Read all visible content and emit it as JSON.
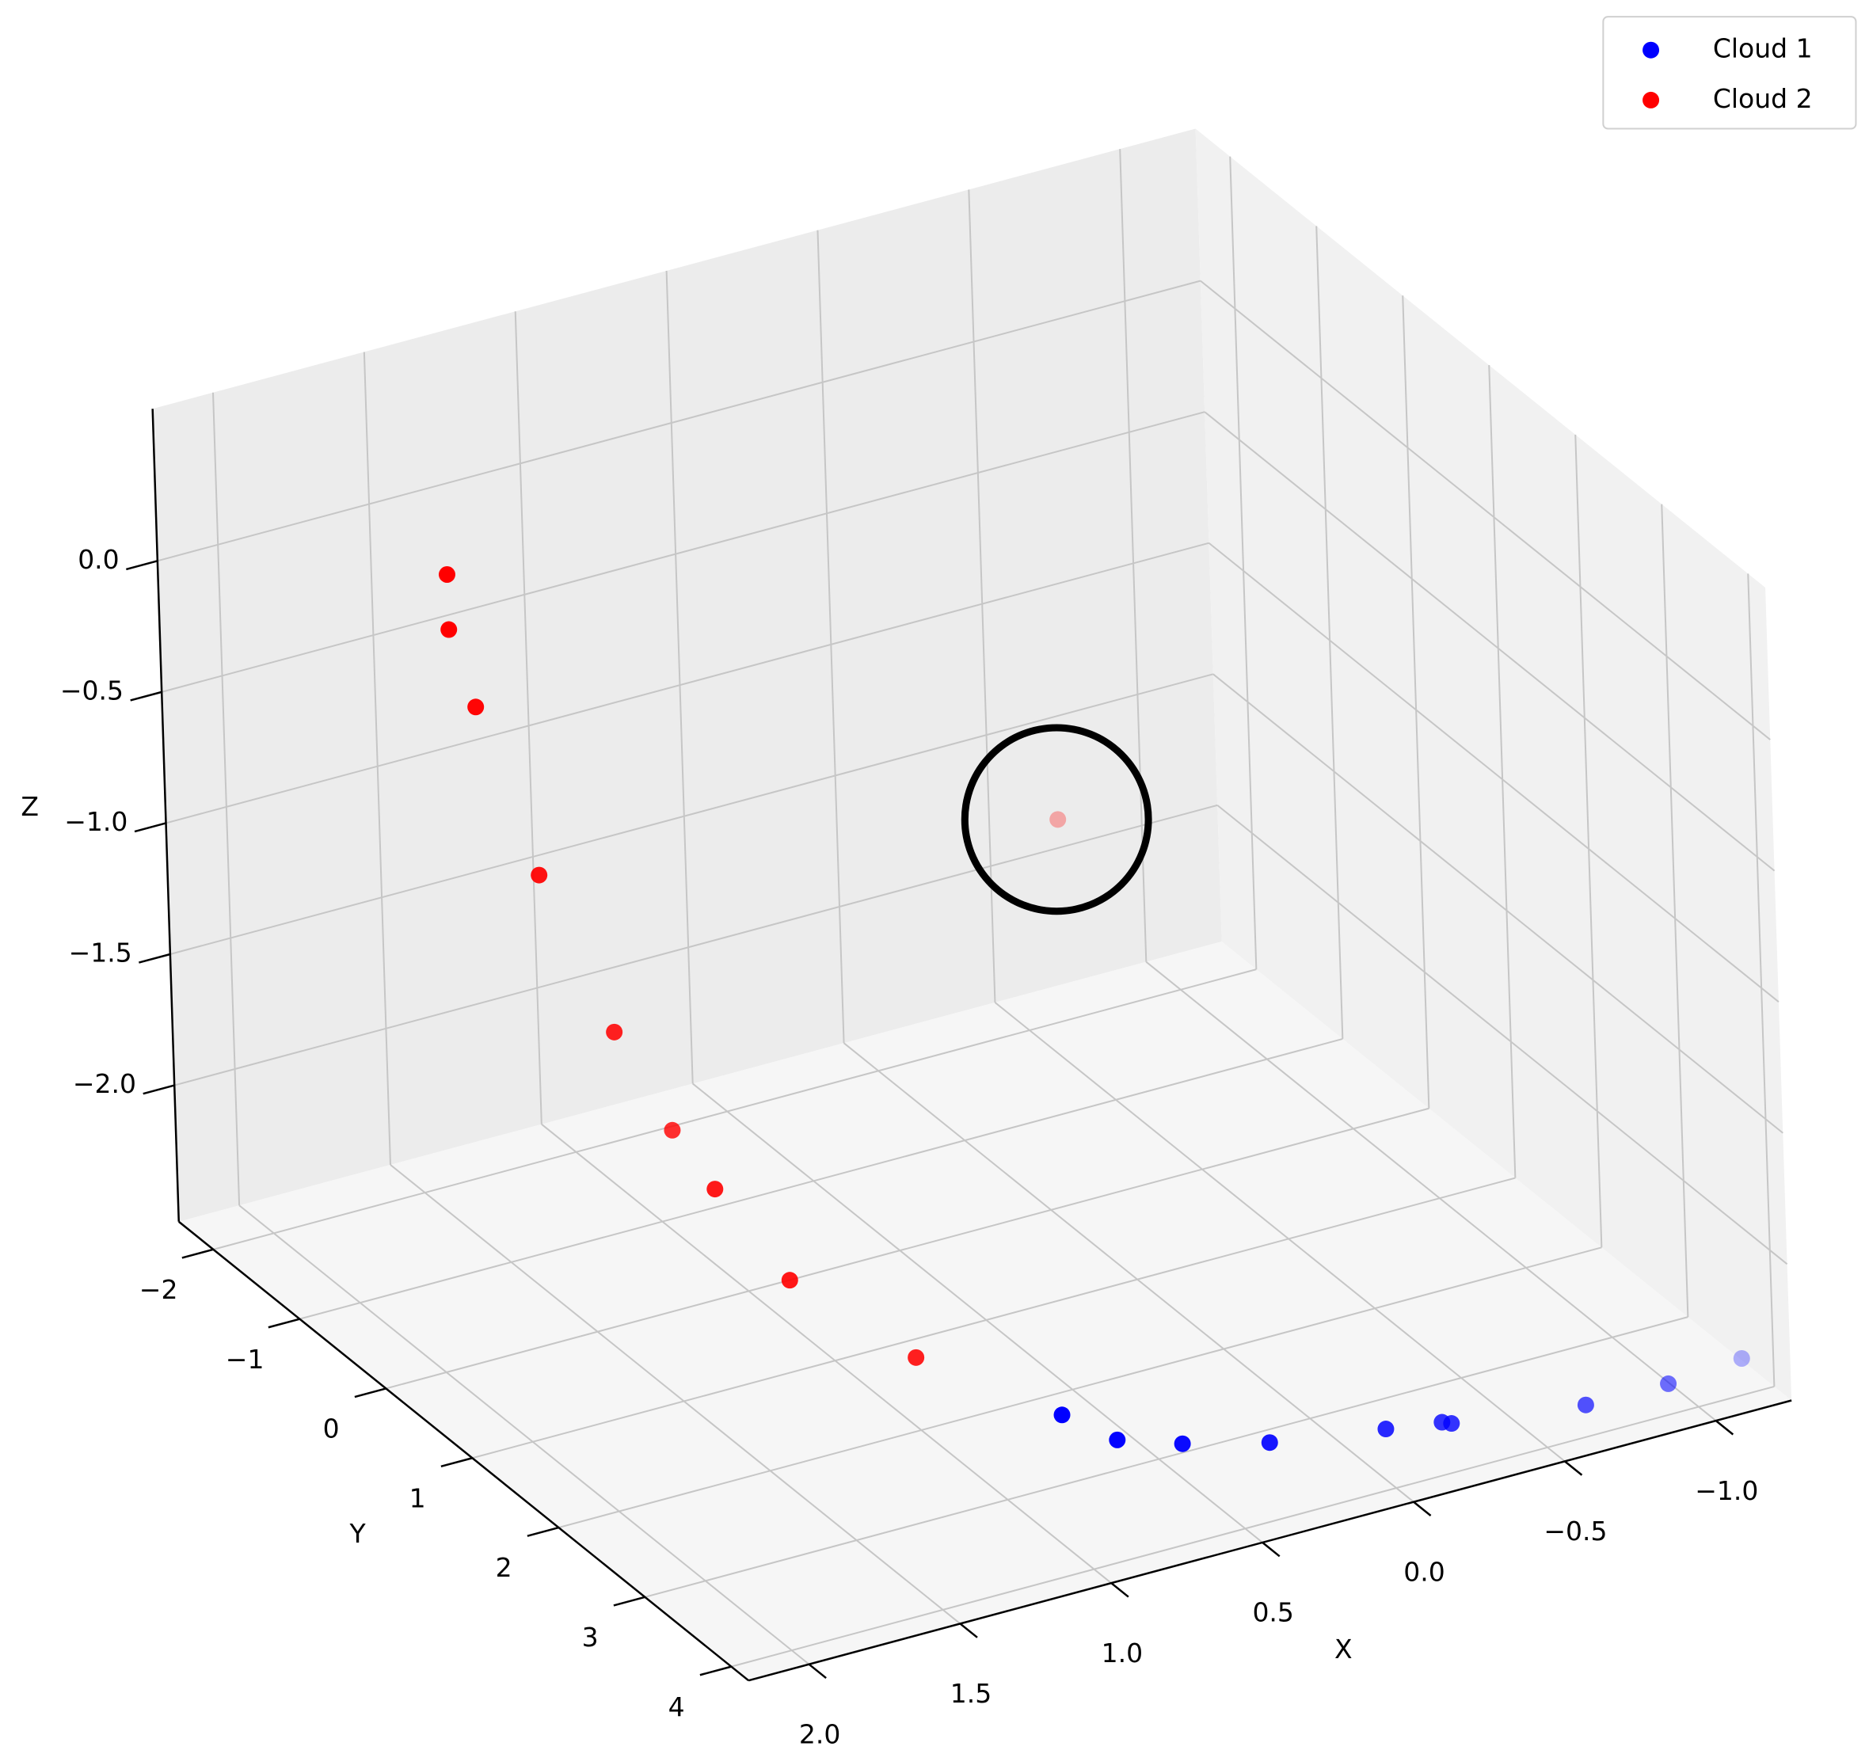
{
  "chart_data": {
    "type": "scatter3d",
    "xlabel": "X",
    "ylabel": "Y",
    "zlabel": "Z",
    "xlim": [
      -1.25,
      2.2
    ],
    "ylim": [
      -2.4,
      4.2
    ],
    "zlim": [
      -2.52,
      0.58
    ],
    "xticks": [
      {
        "value": -1,
        "label": "−1.0"
      },
      {
        "value": -0.5,
        "label": "−0.5"
      },
      {
        "value": 0,
        "label": "0.0"
      },
      {
        "value": 0.5,
        "label": "0.5"
      },
      {
        "value": 1,
        "label": "1.0"
      },
      {
        "value": 1.5,
        "label": "1.5"
      },
      {
        "value": 2,
        "label": "2.0"
      }
    ],
    "yticks": [
      {
        "value": -2,
        "label": "−2"
      },
      {
        "value": -1,
        "label": "−1"
      },
      0,
      1,
      2,
      3,
      4
    ],
    "zticks": [
      {
        "value": -2,
        "label": "−2.0"
      },
      {
        "value": -1.5,
        "label": "−1.5"
      },
      {
        "value": -1,
        "label": "−1.0"
      },
      {
        "value": -0.5,
        "label": "−0.5"
      },
      {
        "value": 0,
        "label": "0.0"
      }
    ],
    "grid": true,
    "depthshade": true,
    "legend": "upper right",
    "series": [
      {
        "name": "Cloud 1",
        "color": "#0000ff",
        "x": [
          0.62,
          0.56,
          0.41,
          0.19,
          -0.14,
          -0.3,
          -0.32,
          -0.71,
          -0.98,
          -1.24
        ],
        "y": [
          2.3,
          2.73,
          2.96,
          3.2,
          3.39,
          3.48,
          3.52,
          3.71,
          3.72,
          3.66
        ],
        "z": [
          -2.5,
          -2.5,
          -2.5,
          -2.5,
          -2.5,
          -2.5,
          -2.5,
          -2.5,
          -2.5,
          -2.5
        ]
      },
      {
        "name": "Cloud 2",
        "color": "#ff0000",
        "x": [
          1.5,
          1.5,
          1.42,
          1.23,
          1.0,
          0.82,
          1.1,
          1.14,
          1.01,
          0
        ],
        "y": [
          -1.5,
          -1.5,
          -1.5,
          -1.5,
          -1.5,
          -1.5,
          0,
          1,
          2,
          0.23
        ],
        "z": [
          -0.03,
          -0.24,
          -0.56,
          -1.26,
          -1.93,
          -2.36,
          -2.1,
          -2.17,
          -2.24,
          -0.97
        ]
      }
    ]
  }
}
